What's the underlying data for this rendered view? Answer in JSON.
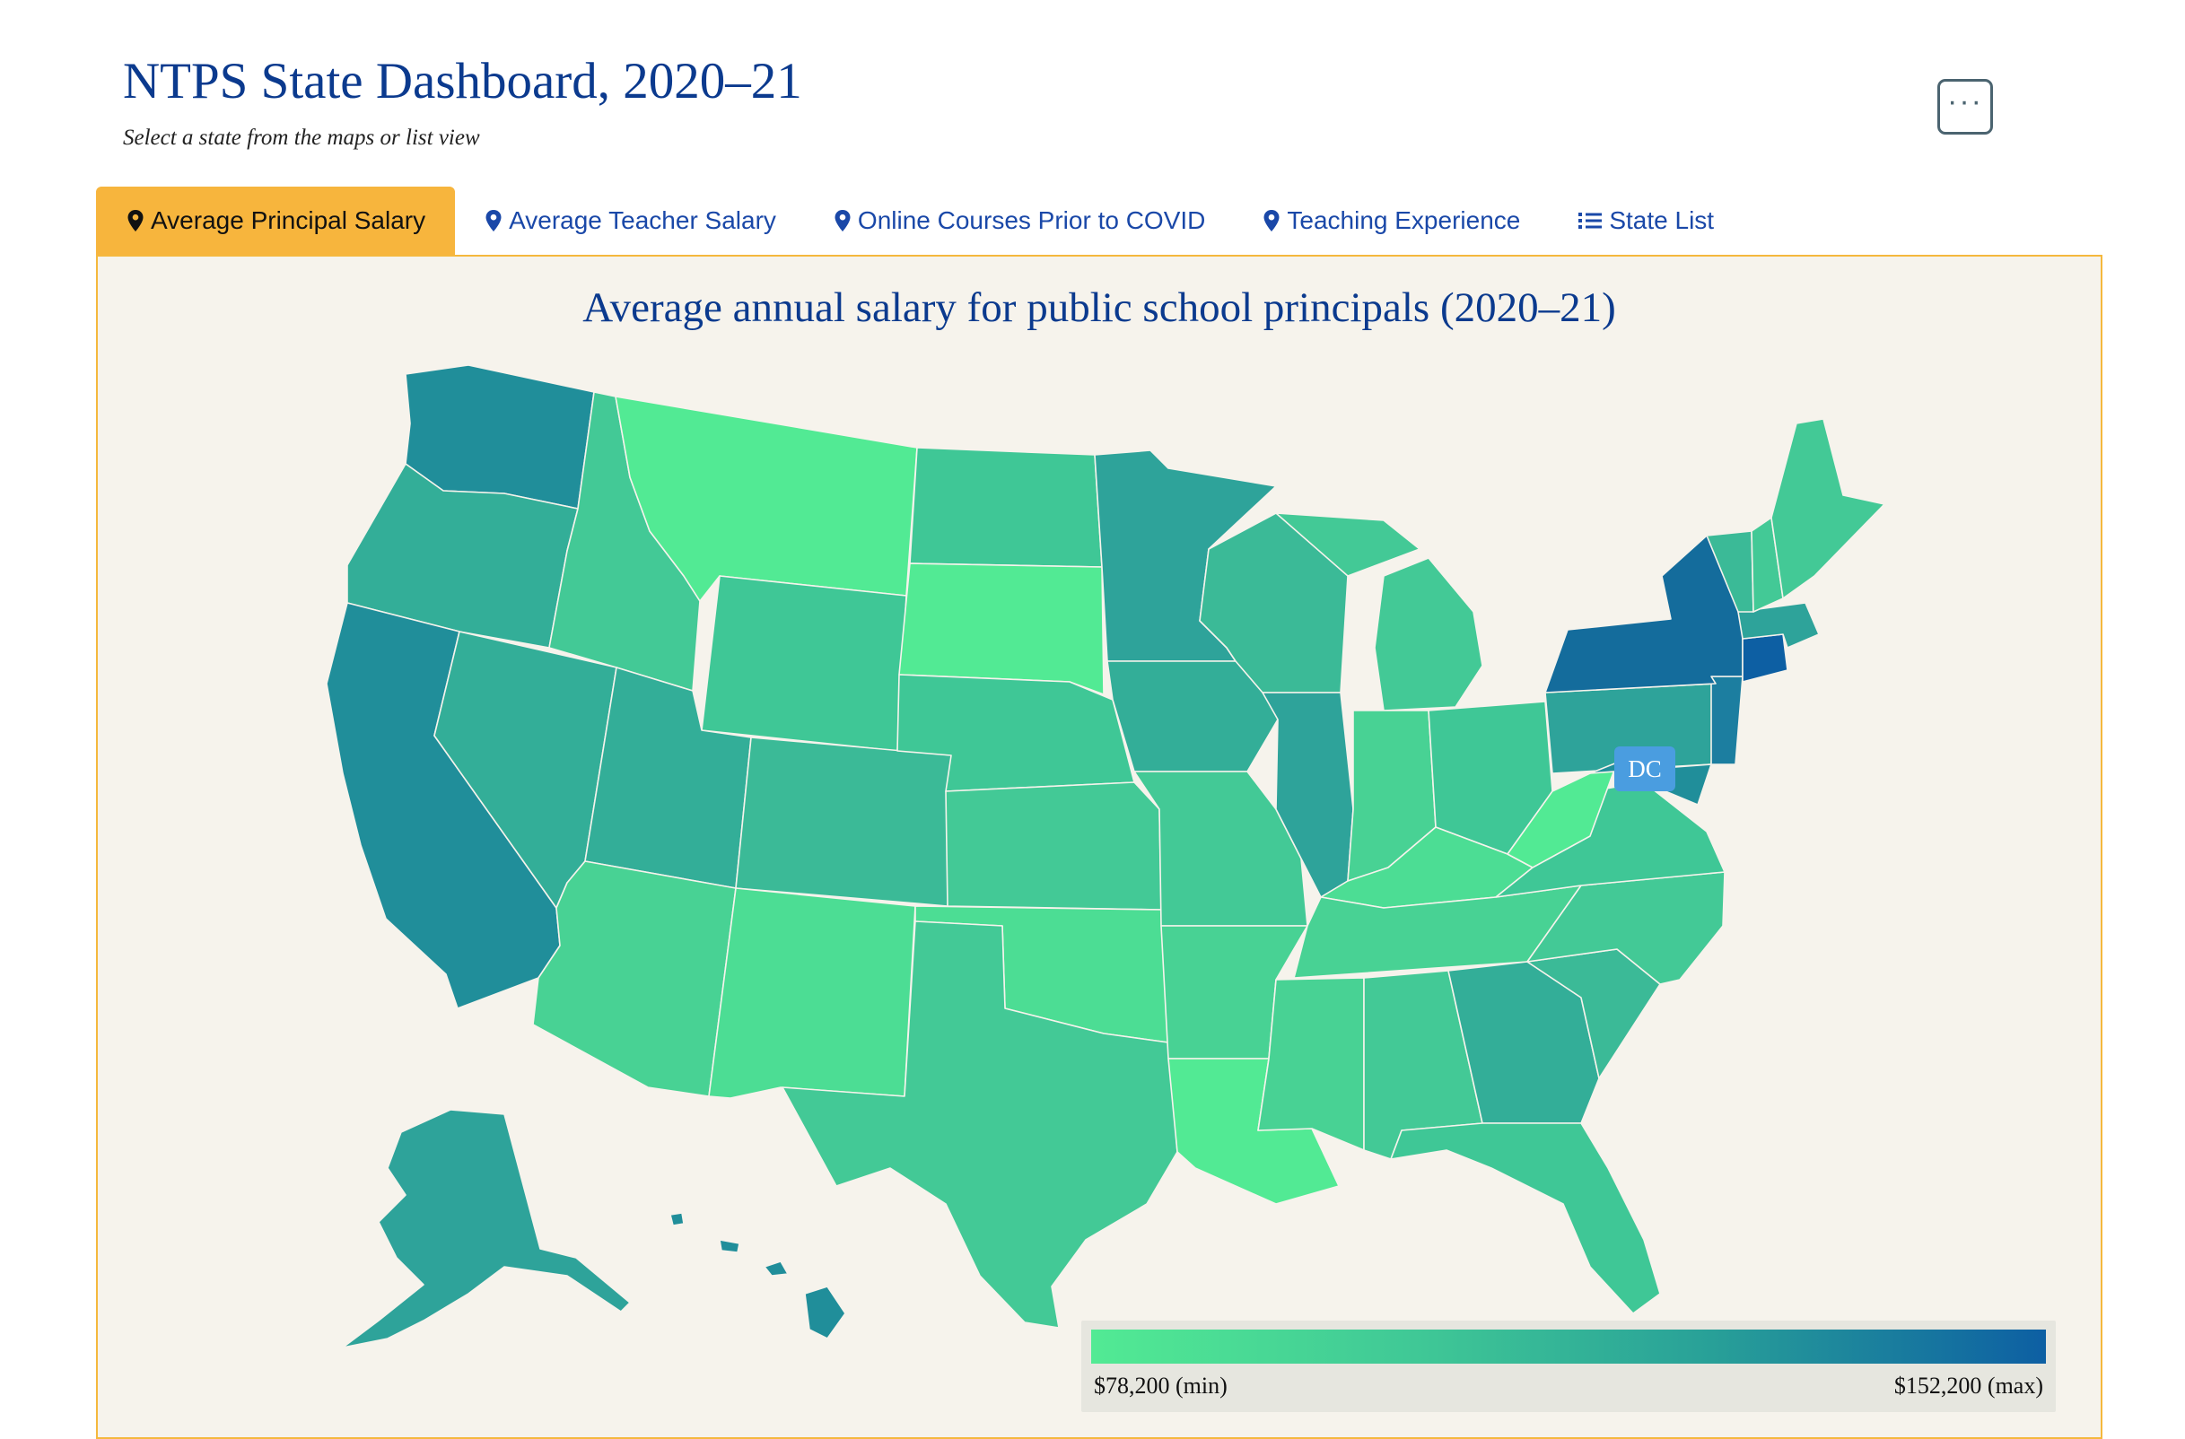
{
  "header": {
    "title": "NTPS State Dashboard, 2020–21",
    "subtitle": "Select a state from the maps or list view",
    "menu_label": "···"
  },
  "tabs": [
    {
      "label": "Average Principal Salary",
      "icon": "map-pin-icon",
      "active": true
    },
    {
      "label": "Average Teacher Salary",
      "icon": "map-pin-icon",
      "active": false
    },
    {
      "label": "Online Courses Prior to COVID",
      "icon": "map-pin-icon",
      "active": false
    },
    {
      "label": "Teaching Experience",
      "icon": "map-pin-icon",
      "active": false
    },
    {
      "label": "State List",
      "icon": "list-icon",
      "active": false
    }
  ],
  "map": {
    "title": "Average annual salary for public school principals (2020–21)",
    "dc_label": "DC",
    "legend": {
      "min_label": "$78,200 (min)",
      "max_label": "$152,200 (max)"
    },
    "colors": {
      "low": "#52ea94",
      "mid": "#3fc796",
      "high": "#28a098",
      "max": "#0d5fa3",
      "background": "#f6f3ec",
      "accent": "#f7b53d",
      "dc": "#4a9de0"
    }
  }
}
